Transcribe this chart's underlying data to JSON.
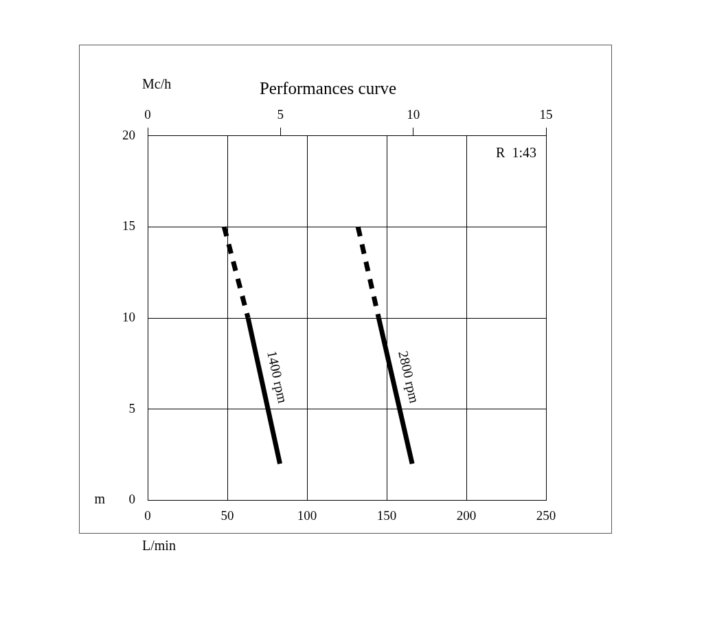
{
  "chart_data": {
    "type": "line",
    "title": "Performances curve",
    "xlabel": "L/min",
    "x2label": "Mc/h",
    "ylabel": "m",
    "xlim": [
      0,
      250
    ],
    "xticks": [
      0,
      50,
      100,
      150,
      200,
      250
    ],
    "x2lim": [
      0,
      15
    ],
    "x2ticks": [
      0,
      5,
      10,
      15
    ],
    "ylim": [
      0,
      20
    ],
    "yticks": [
      0,
      5,
      10,
      15,
      20
    ],
    "grid": true,
    "legend": false,
    "annotations": [
      "R  1:43"
    ],
    "series": [
      {
        "name": "1400 rpm",
        "color": "#000000",
        "line_style": "solid",
        "x": [
          63,
          83
        ],
        "values": [
          10,
          2
        ]
      },
      {
        "color": "#000000",
        "line_style": "dashed",
        "x": [
          48,
          63
        ],
        "values": [
          15,
          10
        ]
      },
      {
        "name": "2800 rpm",
        "color": "#000000",
        "line_style": "solid",
        "x": [
          145,
          166
        ],
        "values": [
          10,
          2
        ]
      },
      {
        "color": "#000000",
        "line_style": "dashed",
        "x": [
          132,
          145
        ],
        "values": [
          15,
          10
        ]
      }
    ]
  }
}
